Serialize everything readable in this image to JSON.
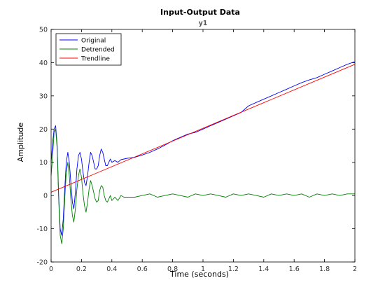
{
  "chart_data": {
    "type": "line",
    "title": "Input-Output Data",
    "subtitle": "y1",
    "xlabel": "Time (seconds)",
    "ylabel": "Amplitude",
    "xlim": [
      0,
      2
    ],
    "ylim": [
      -20,
      50
    ],
    "xticks": [
      0,
      0.2,
      0.4,
      0.6,
      0.8,
      1,
      1.2,
      1.4,
      1.6,
      1.8,
      2
    ],
    "xtick_labels": [
      "0",
      "0.2",
      "0.4",
      "0.6",
      "0.8",
      "1",
      "1.2",
      "1.4",
      "1.6",
      "1.8",
      "2"
    ],
    "yticks": [
      -20,
      -10,
      0,
      10,
      20,
      30,
      40,
      50
    ],
    "ytick_labels": [
      "-20",
      "-10",
      "0",
      "10",
      "20",
      "30",
      "40",
      "50"
    ],
    "grid": false,
    "legend_position": "top-left",
    "series": [
      {
        "name": "Original",
        "color": "#0000ff",
        "x": [
          0,
          0.01,
          0.02,
          0.03,
          0.04,
          0.05,
          0.06,
          0.07,
          0.08,
          0.09,
          0.1,
          0.11,
          0.12,
          0.13,
          0.14,
          0.15,
          0.16,
          0.17,
          0.18,
          0.19,
          0.2,
          0.21,
          0.22,
          0.23,
          0.24,
          0.25,
          0.26,
          0.27,
          0.28,
          0.29,
          0.3,
          0.31,
          0.32,
          0.33,
          0.34,
          0.35,
          0.36,
          0.37,
          0.38,
          0.39,
          0.4,
          0.42,
          0.44,
          0.46,
          0.48,
          0.5,
          0.55,
          0.6,
          0.65,
          0.7,
          0.75,
          0.8,
          0.85,
          0.9,
          0.95,
          1,
          1.05,
          1.1,
          1.15,
          1.2,
          1.25,
          1.3,
          1.35,
          1.4,
          1.45,
          1.5,
          1.55,
          1.6,
          1.65,
          1.7,
          1.75,
          1.8,
          1.85,
          1.9,
          1.95,
          2
        ],
        "y": [
          10,
          16,
          20,
          21,
          15,
          0,
          -10,
          -12,
          -7,
          2,
          10,
          13,
          10,
          4,
          -2,
          -4,
          1,
          8,
          12,
          13,
          11,
          7,
          4,
          3,
          6,
          10,
          13,
          12,
          10,
          8,
          8,
          9,
          12,
          14,
          13,
          11,
          9,
          9,
          10,
          11,
          10,
          10.5,
          10,
          10.8,
          11,
          11.2,
          11.5,
          12.2,
          13,
          14,
          15.2,
          16.5,
          17.5,
          18.5,
          19,
          20,
          21,
          22,
          23,
          24,
          25,
          27,
          28,
          29,
          30,
          31,
          32,
          33,
          34,
          34.8,
          35.5,
          36.5,
          37.5,
          38.5,
          39.5,
          40.3
        ]
      },
      {
        "name": "Detrended",
        "color": "#008000",
        "x": [
          0,
          0.01,
          0.02,
          0.03,
          0.04,
          0.05,
          0.06,
          0.07,
          0.08,
          0.09,
          0.1,
          0.11,
          0.12,
          0.13,
          0.14,
          0.15,
          0.16,
          0.17,
          0.18,
          0.19,
          0.2,
          0.21,
          0.22,
          0.23,
          0.24,
          0.25,
          0.26,
          0.27,
          0.28,
          0.29,
          0.3,
          0.31,
          0.32,
          0.33,
          0.34,
          0.35,
          0.36,
          0.37,
          0.38,
          0.39,
          0.4,
          0.42,
          0.44,
          0.46,
          0.48,
          0.5,
          0.55,
          0.6,
          0.65,
          0.7,
          0.75,
          0.8,
          0.85,
          0.9,
          0.95,
          1,
          1.05,
          1.1,
          1.15,
          1.2,
          1.25,
          1.3,
          1.35,
          1.4,
          1.45,
          1.5,
          1.55,
          1.6,
          1.65,
          1.7,
          1.75,
          1.8,
          1.85,
          1.9,
          1.95,
          2
        ],
        "y": [
          6,
          12,
          19,
          20,
          14,
          -1,
          -12,
          -14.5,
          -10,
          -1,
          7,
          10,
          6,
          -1,
          -6,
          -8,
          -4,
          2,
          6,
          8,
          5.5,
          0.5,
          -3,
          -5,
          -2,
          2,
          4.5,
          3,
          1,
          -1,
          -2,
          -1.5,
          1.5,
          3,
          2.5,
          0,
          -1.5,
          -2,
          -1,
          0,
          -1.5,
          -0.5,
          -1.5,
          0,
          -0.5,
          -0.5,
          -0.5,
          0,
          0.5,
          -0.5,
          0,
          0.5,
          0,
          -0.5,
          0.5,
          0,
          0.5,
          0,
          -0.5,
          0.5,
          0,
          0.5,
          0,
          -0.5,
          0.5,
          0,
          0.5,
          0,
          0.5,
          -0.5,
          0.5,
          0,
          0.5,
          0,
          0.5,
          0.5
        ]
      },
      {
        "name": "Trendline",
        "color": "#ff0000",
        "x": [
          0,
          2
        ],
        "y": [
          1,
          39.5
        ]
      }
    ]
  }
}
